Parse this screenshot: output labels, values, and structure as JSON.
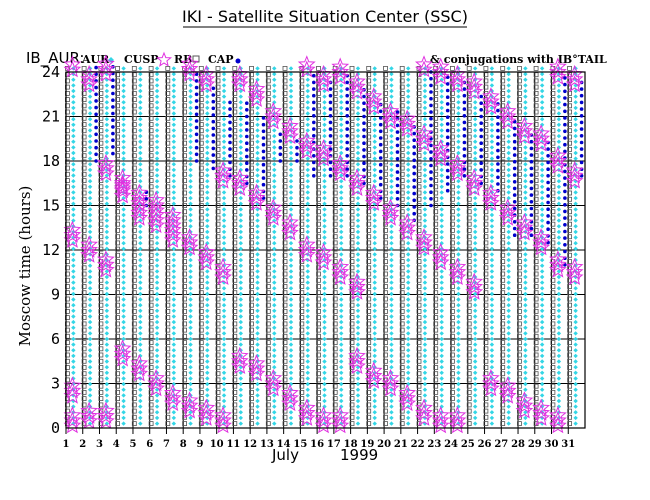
{
  "chart_data": {
    "type": "scatter",
    "title": "IKI - Satellite Situation Center (SSC)",
    "prefix": "IB_AUR:",
    "conjugation_note": "& conjugations with IB°TAIL",
    "legend": [
      {
        "label": "AUR",
        "symbol": "diamond",
        "color": "#33d6e6"
      },
      {
        "label": "CUSP",
        "symbol": "star",
        "color": "#e030e0"
      },
      {
        "label": "RB",
        "symbol": "square",
        "color": "#555555"
      },
      {
        "label": "CAP",
        "symbol": "dot",
        "color": "#0000cc"
      }
    ],
    "xlabel_month": "July",
    "xlabel_year": "1999",
    "ylabel": "Moscow time (hours)",
    "xlim": [
      1,
      32
    ],
    "ylim": [
      0,
      24
    ],
    "yticks": [
      0,
      3,
      6,
      9,
      12,
      15,
      18,
      21,
      24
    ],
    "days": [
      1,
      2,
      3,
      4,
      5,
      6,
      7,
      8,
      9,
      10,
      11,
      12,
      13,
      14,
      15,
      16,
      17,
      18,
      19,
      20,
      21,
      22,
      23,
      24,
      25,
      26,
      27,
      28,
      29,
      30,
      31
    ],
    "passes": [
      {
        "day": 2,
        "cusp": [
          0.5,
          2.5,
          13,
          24.5
        ],
        "cap_start": 24,
        "cap_end": 24
      },
      {
        "day": 3,
        "cusp": [
          0.8,
          12,
          23.5
        ],
        "cap_start": 18,
        "cap_end": 24.5
      },
      {
        "day": 4,
        "cusp": [
          0.8,
          11,
          17.5,
          24.2
        ],
        "cap_start": 18.5,
        "cap_end": 24.5
      },
      {
        "day": 5,
        "cusp": [
          5,
          16,
          16.5
        ],
        "cap_start": 16,
        "cap_end": 16
      },
      {
        "day": 6,
        "cusp": [
          4,
          14.5,
          15.5
        ],
        "cap_start": 15,
        "cap_end": 16
      },
      {
        "day": 7,
        "cusp": [
          3,
          14,
          15
        ],
        "cap_start": 15,
        "cap_end": 15
      },
      {
        "day": 8,
        "cusp": [
          2,
          13,
          14
        ],
        "cap_start": 14,
        "cap_end": 14
      },
      {
        "day": 9,
        "cusp": [
          1.5,
          12.5,
          24.2
        ],
        "cap_start": 18,
        "cap_end": 24
      },
      {
        "day": 10,
        "cusp": [
          1,
          11.5,
          23.5
        ],
        "cap_start": 17.5,
        "cap_end": 23
      },
      {
        "day": 11,
        "cusp": [
          0.5,
          10.5,
          17
        ],
        "cap_start": 17,
        "cap_end": 22
      },
      {
        "day": 12,
        "cusp": [
          4.5,
          16.5,
          23.5
        ],
        "cap_start": 16.5,
        "cap_end": 22
      },
      {
        "day": 13,
        "cusp": [
          4,
          15.5,
          22.5
        ],
        "cap_start": 15.5,
        "cap_end": 21
      },
      {
        "day": 14,
        "cusp": [
          3,
          14.5,
          21
        ],
        "cap_start": 18,
        "cap_end": 20
      },
      {
        "day": 15,
        "cusp": [
          2,
          13.5,
          20
        ],
        "cap_start": 18,
        "cap_end": 19.5
      },
      {
        "day": 16,
        "cusp": [
          1,
          12,
          19,
          24.5
        ],
        "cap_start": 17,
        "cap_end": 24
      },
      {
        "day": 17,
        "cusp": [
          0.5,
          11.5,
          18.5,
          23.5
        ],
        "cap_start": 17,
        "cap_end": 23.5
      },
      {
        "day": 18,
        "cusp": [
          0.5,
          10.5,
          17.5,
          24
        ],
        "cap_start": 17,
        "cap_end": 24
      },
      {
        "day": 19,
        "cusp": [
          4.5,
          9.5,
          16.5,
          23
        ],
        "cap_start": 16.5,
        "cap_end": 23
      },
      {
        "day": 20,
        "cusp": [
          3.5,
          15.5,
          22
        ],
        "cap_start": 15.5,
        "cap_end": 22
      },
      {
        "day": 21,
        "cusp": [
          3,
          14.5,
          21
        ],
        "cap_start": 15,
        "cap_end": 21.5
      },
      {
        "day": 22,
        "cusp": [
          2,
          13.5,
          20.5
        ],
        "cap_start": 14,
        "cap_end": 20.5
      },
      {
        "day": 23,
        "cusp": [
          1,
          12.5,
          19.5,
          24.5
        ],
        "cap_start": 15,
        "cap_end": 24
      },
      {
        "day": 24,
        "cusp": [
          0.5,
          11.5,
          18.5,
          24
        ],
        "cap_start": 16,
        "cap_end": 24
      },
      {
        "day": 25,
        "cusp": [
          0.5,
          10.5,
          17.5,
          23.5
        ],
        "cap_start": 17,
        "cap_end": 23.5
      },
      {
        "day": 26,
        "cusp": [
          9.5,
          16.5,
          23
        ],
        "cap_start": 16.5,
        "cap_end": 22.5
      },
      {
        "day": 27,
        "cusp": [
          3,
          15.5,
          22
        ],
        "cap_start": 16,
        "cap_end": 22
      },
      {
        "day": 28,
        "cusp": [
          2.5,
          14.5,
          21
        ],
        "cap_start": 13,
        "cap_end": 21
      },
      {
        "day": 29,
        "cusp": [
          1.5,
          13.5,
          20
        ],
        "cap_start": 13,
        "cap_end": 20
      },
      {
        "day": 30,
        "cusp": [
          1,
          12.5,
          19.5
        ],
        "cap_start": 12.5,
        "cap_end": 19.5
      },
      {
        "day": 31,
        "cusp": [
          0.5,
          11,
          18,
          24
        ],
        "cap_start": 11,
        "cap_end": 24
      },
      {
        "day": 32,
        "cusp": [
          10.5,
          17,
          23.5
        ],
        "cap_start": 17,
        "cap_end": 23.5
      }
    ]
  }
}
